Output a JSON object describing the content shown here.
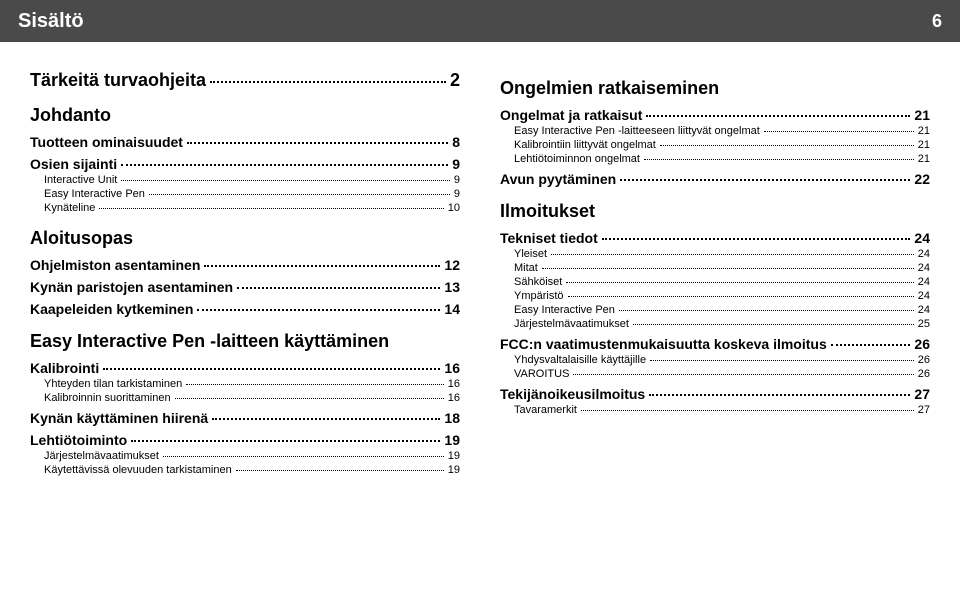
{
  "header": {
    "title": "Sisältö",
    "page": "6"
  },
  "left": [
    {
      "level": 1,
      "label": "Tärkeitä turvaohjeita",
      "page": "2",
      "hasPage": true
    },
    {
      "level": 1,
      "label": "Johdanto",
      "hasPage": false
    },
    {
      "level": 2,
      "label": "Tuotteen ominaisuudet",
      "page": "8",
      "hasPage": true
    },
    {
      "level": 2,
      "label": "Osien sijainti",
      "page": "9",
      "hasPage": true
    },
    {
      "level": 3,
      "label": "Interactive Unit",
      "page": "9",
      "hasPage": true
    },
    {
      "level": 3,
      "label": "Easy Interactive Pen",
      "page": "9",
      "hasPage": true
    },
    {
      "level": 3,
      "label": "Kynäteline",
      "page": "10",
      "hasPage": true
    },
    {
      "level": 1,
      "label": "Aloitusopas",
      "hasPage": false
    },
    {
      "level": 2,
      "label": "Ohjelmiston asentaminen",
      "page": "12",
      "hasPage": true
    },
    {
      "level": 2,
      "label": "Kynän paristojen asentaminen",
      "page": "13",
      "hasPage": true
    },
    {
      "level": 2,
      "label": "Kaapeleiden kytkeminen",
      "page": "14",
      "hasPage": true
    },
    {
      "level": 1,
      "label": "Easy Interactive Pen -laitteen käyttäminen",
      "hasPage": false
    },
    {
      "level": 2,
      "label": "Kalibrointi",
      "page": "16",
      "hasPage": true
    },
    {
      "level": 3,
      "label": "Yhteyden tilan tarkistaminen",
      "page": "16",
      "hasPage": true
    },
    {
      "level": 3,
      "label": "Kalibroinnin suorittaminen",
      "page": "16",
      "hasPage": true
    },
    {
      "level": 2,
      "label": "Kynän käyttäminen hiirenä",
      "page": "18",
      "hasPage": true
    },
    {
      "level": 2,
      "label": "Lehtiötoiminto",
      "page": "19",
      "hasPage": true
    },
    {
      "level": 3,
      "label": "Järjestelmävaatimukset",
      "page": "19",
      "hasPage": true
    },
    {
      "level": 3,
      "label": "Käytettävissä olevuuden tarkistaminen",
      "page": "19",
      "hasPage": true
    }
  ],
  "right": [
    {
      "level": 1,
      "label": "Ongelmien ratkaiseminen",
      "hasPage": false
    },
    {
      "level": 2,
      "label": "Ongelmat ja ratkaisut",
      "page": "21",
      "hasPage": true
    },
    {
      "level": 3,
      "label": "Easy Interactive Pen -laitteeseen liittyvät ongelmat",
      "page": "21",
      "hasPage": true
    },
    {
      "level": 3,
      "label": "Kalibrointiin liittyvät ongelmat",
      "page": "21",
      "hasPage": true
    },
    {
      "level": 3,
      "label": "Lehtiötoiminnon ongelmat",
      "page": "21",
      "hasPage": true
    },
    {
      "level": 2,
      "label": "Avun pyytäminen",
      "page": "22",
      "hasPage": true
    },
    {
      "level": 1,
      "label": "Ilmoitukset",
      "hasPage": false
    },
    {
      "level": 2,
      "label": "Tekniset tiedot",
      "page": "24",
      "hasPage": true
    },
    {
      "level": 3,
      "label": "Yleiset",
      "page": "24",
      "hasPage": true
    },
    {
      "level": 3,
      "label": "Mitat",
      "page": "24",
      "hasPage": true
    },
    {
      "level": 3,
      "label": "Sähköiset",
      "page": "24",
      "hasPage": true
    },
    {
      "level": 3,
      "label": "Ympäristö",
      "page": "24",
      "hasPage": true
    },
    {
      "level": 3,
      "label": "Easy Interactive Pen",
      "page": "24",
      "hasPage": true
    },
    {
      "level": 3,
      "label": "Järjestelmävaatimukset",
      "page": "25",
      "hasPage": true
    },
    {
      "level": 2,
      "label": "FCC:n vaatimustenmukaisuutta koskeva ilmoitus",
      "page": "26",
      "hasPage": true
    },
    {
      "level": 3,
      "label": "Yhdysvaltalaisille käyttäjille",
      "page": "26",
      "hasPage": true
    },
    {
      "level": 3,
      "label": "VAROITUS",
      "page": "26",
      "hasPage": true
    },
    {
      "level": 2,
      "label": "Tekijänoikeusilmoitus",
      "page": "27",
      "hasPage": true
    },
    {
      "level": 3,
      "label": "Tavaramerkit",
      "page": "27",
      "hasPage": true
    }
  ]
}
